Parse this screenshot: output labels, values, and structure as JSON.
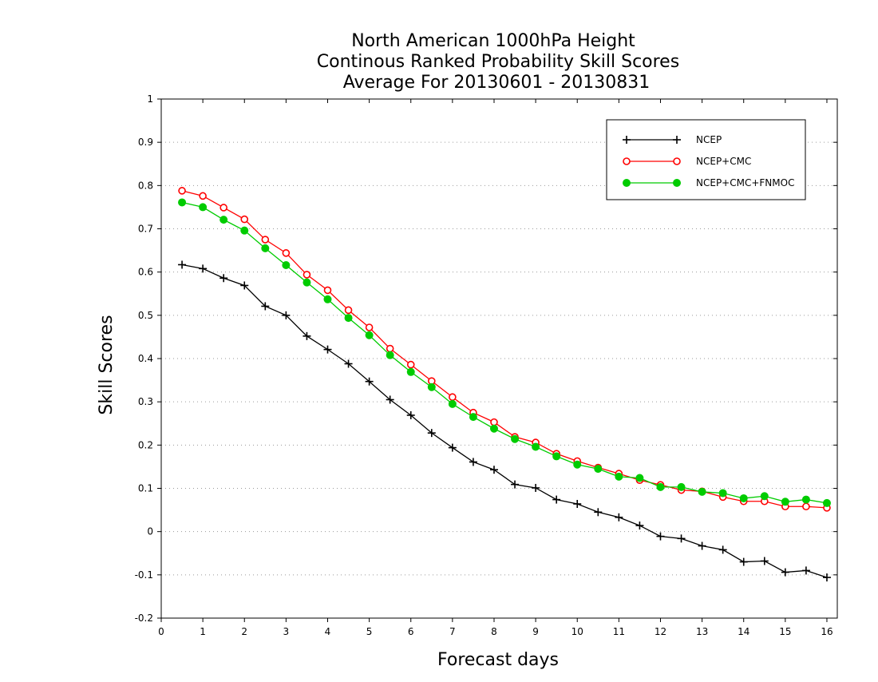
{
  "chart_data": {
    "type": "line",
    "title": [
      "North American 1000hPa Height",
      "Continous Ranked Probability Skill Scores",
      "Average For 20130601 - 20130831"
    ],
    "xlabel": "Forecast days",
    "ylabel": "Skill Scores",
    "xlim": [
      0,
      16.25
    ],
    "ylim": [
      -0.2,
      1.0
    ],
    "xticks": [
      0,
      1,
      2,
      3,
      4,
      5,
      6,
      7,
      8,
      9,
      10,
      11,
      12,
      13,
      14,
      15,
      16
    ],
    "xtick_labels": [
      "0",
      "1",
      "2",
      "3",
      "4",
      "5",
      "6",
      "7",
      "8",
      "9",
      "10",
      "11",
      "12",
      "13",
      "14",
      "15",
      "16"
    ],
    "yticks": [
      -0.2,
      -0.1,
      0,
      0.1,
      0.2,
      0.3,
      0.4,
      0.5,
      0.6,
      0.7,
      0.8,
      0.9,
      1
    ],
    "ytick_labels": [
      "-0.2",
      "-0.1",
      "0",
      "0.1",
      "0.2",
      "0.3",
      "0.4",
      "0.5",
      "0.6",
      "0.7",
      "0.8",
      "0.9",
      "1"
    ],
    "grid": "horizontal dotted",
    "legend_position": "top-right",
    "x": [
      0.5,
      1.0,
      1.5,
      2.0,
      2.5,
      3.0,
      3.5,
      4.0,
      4.5,
      5.0,
      5.5,
      6.0,
      6.5,
      7.0,
      7.5,
      8.0,
      8.5,
      9.0,
      9.5,
      10.0,
      10.5,
      11.0,
      11.5,
      12.0,
      12.5,
      13.0,
      13.5,
      14.0,
      14.5,
      15.0,
      15.5,
      16.0
    ],
    "series": [
      {
        "name": "NCEP",
        "color": "#000000",
        "marker": "plus",
        "values": [
          0.617,
          0.608,
          0.586,
          0.569,
          0.521,
          0.5,
          0.452,
          0.421,
          0.388,
          0.347,
          0.305,
          0.269,
          0.228,
          0.194,
          0.161,
          0.143,
          0.109,
          0.101,
          0.074,
          0.064,
          0.045,
          0.033,
          0.014,
          -0.011,
          -0.016,
          -0.033,
          -0.042,
          -0.07,
          -0.068,
          -0.094,
          -0.09,
          -0.106
        ]
      },
      {
        "name": "NCEP+CMC",
        "color": "#ff0000",
        "marker": "open-circle",
        "values": [
          0.788,
          0.776,
          0.749,
          0.722,
          0.675,
          0.644,
          0.594,
          0.558,
          0.512,
          0.472,
          0.423,
          0.386,
          0.348,
          0.311,
          0.275,
          0.253,
          0.219,
          0.206,
          0.18,
          0.163,
          0.148,
          0.134,
          0.119,
          0.108,
          0.096,
          0.093,
          0.08,
          0.07,
          0.07,
          0.058,
          0.058,
          0.055
        ]
      },
      {
        "name": "NCEP+CMC+FNMOC",
        "color": "#00cc00",
        "marker": "filled-circle",
        "values": [
          0.761,
          0.75,
          0.721,
          0.696,
          0.655,
          0.616,
          0.576,
          0.537,
          0.494,
          0.454,
          0.408,
          0.369,
          0.334,
          0.295,
          0.265,
          0.238,
          0.214,
          0.196,
          0.174,
          0.155,
          0.145,
          0.127,
          0.124,
          0.103,
          0.103,
          0.092,
          0.089,
          0.077,
          0.082,
          0.069,
          0.074,
          0.066
        ]
      }
    ]
  }
}
